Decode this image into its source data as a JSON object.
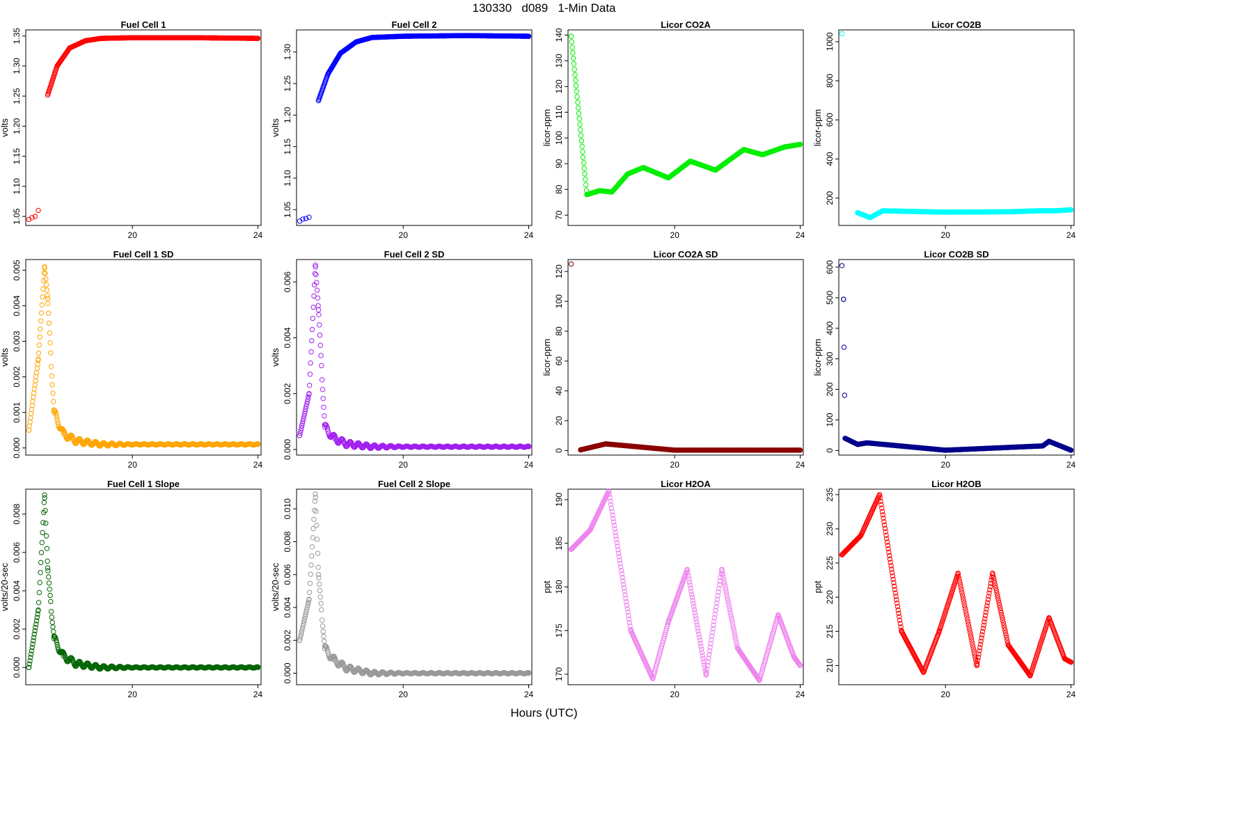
{
  "page": {
    "title": "130330   d089   1-Min Data",
    "xlabel": "Hours (UTC)"
  },
  "chart_data": [
    {
      "type": "scatter",
      "title": "Fuel Cell 1",
      "ylabel": "volts",
      "color": "#ff0000",
      "xlim": [
        16.6,
        24.1
      ],
      "ylim": [
        1.035,
        1.36
      ],
      "xticks": [
        20,
        24
      ],
      "yticks": [
        1.05,
        1.1,
        1.15,
        1.2,
        1.25,
        1.3,
        1.35
      ],
      "series": [
        {
          "pattern": "rise",
          "x": [
            16.7,
            16.8,
            16.9,
            17.0,
            17.3,
            17.6,
            18.0,
            18.5,
            19.0,
            20.0,
            22.0,
            24.0
          ],
          "y": [
            1.045,
            1.048,
            1.05,
            1.06,
            1.252,
            1.3,
            1.33,
            1.342,
            1.346,
            1.347,
            1.347,
            1.346
          ]
        }
      ]
    },
    {
      "type": "scatter",
      "title": "Fuel Cell 2",
      "ylabel": "volts",
      "color": "#0000ff",
      "xlim": [
        16.6,
        24.1
      ],
      "ylim": [
        1.025,
        1.335
      ],
      "xticks": [
        20,
        24
      ],
      "yticks": [
        1.05,
        1.1,
        1.15,
        1.2,
        1.25,
        1.3
      ],
      "series": [
        {
          "pattern": "rise",
          "x": [
            16.7,
            16.8,
            16.9,
            17.0,
            17.3,
            17.6,
            18.0,
            18.5,
            19.0,
            20.0,
            22.0,
            24.0
          ],
          "y": [
            1.032,
            1.035,
            1.036,
            1.038,
            1.223,
            1.265,
            1.298,
            1.316,
            1.323,
            1.325,
            1.326,
            1.325
          ]
        }
      ]
    },
    {
      "type": "scatter",
      "title": "Licor CO2A",
      "ylabel": "licor-ppm",
      "color": "#00ee00",
      "xlim": [
        16.6,
        24.1
      ],
      "ylim": [
        66,
        142
      ],
      "xticks": [
        20,
        24
      ],
      "yticks": [
        70,
        80,
        90,
        100,
        110,
        120,
        130,
        140
      ],
      "series": [
        {
          "pattern": "wave",
          "x": [
            16.7,
            17.2,
            17.6,
            18.0,
            18.5,
            19.0,
            19.8,
            20.5,
            21.3,
            22.2,
            22.8,
            23.5,
            24.0
          ],
          "y": [
            139.5,
            78.0,
            79.5,
            79.0,
            86.0,
            88.5,
            84.5,
            91.0,
            87.5,
            95.5,
            93.5,
            96.5,
            97.5
          ]
        }
      ]
    },
    {
      "type": "scatter",
      "title": "Licor CO2B",
      "ylabel": "licor-ppm",
      "color": "#00ffff",
      "xlim": [
        16.6,
        24.1
      ],
      "ylim": [
        60,
        1060
      ],
      "xticks": [
        20,
        24
      ],
      "yticks": [
        200,
        400,
        600,
        800,
        1000
      ],
      "series": [
        {
          "pattern": "flat",
          "x": [
            16.7,
            17.2,
            17.6,
            18.0,
            20.0,
            22.0,
            23.0,
            23.5,
            24.0
          ],
          "y": [
            1040.0,
            125.0,
            100.0,
            135.0,
            128.0,
            130.0,
            135.0,
            135.0,
            140.0
          ]
        }
      ]
    },
    {
      "type": "scatter",
      "title": "Fuel Cell 1 SD",
      "ylabel": "volts",
      "color": "#ffa500",
      "xlim": [
        16.6,
        24.1
      ],
      "ylim": [
        -0.0002,
        0.0053
      ],
      "xticks": [
        20,
        24
      ],
      "yticks": [
        0.0,
        0.001,
        0.002,
        0.003,
        0.004,
        0.005
      ],
      "series": [
        {
          "pattern": "decay",
          "x": [
            16.7,
            17.0,
            17.2,
            17.3,
            17.5,
            17.8,
            18.2,
            19.0,
            22.0,
            24.0
          ],
          "y": [
            0.0005,
            0.0025,
            0.0051,
            0.0042,
            0.001,
            0.0004,
            0.0002,
            0.0001,
            0.0001,
            0.0001
          ]
        }
      ]
    },
    {
      "type": "scatter",
      "title": "Fuel Cell 2 SD",
      "ylabel": "volts",
      "color": "#a020f0",
      "xlim": [
        16.6,
        24.1
      ],
      "ylim": [
        -0.0002,
        0.0068
      ],
      "xticks": [
        20,
        24
      ],
      "yticks": [
        0.0,
        0.002,
        0.004,
        0.006
      ],
      "series": [
        {
          "pattern": "decay",
          "x": [
            16.7,
            17.0,
            17.2,
            17.3,
            17.5,
            17.8,
            18.2,
            19.0,
            22.0,
            24.0
          ],
          "y": [
            0.0005,
            0.002,
            0.0066,
            0.005,
            0.0008,
            0.0004,
            0.0002,
            0.0001,
            0.0001,
            0.0001
          ]
        }
      ]
    },
    {
      "type": "scatter",
      "title": "Licor CO2A SD",
      "ylabel": "licor-ppm",
      "color": "#8b0000",
      "xlim": [
        16.6,
        24.1
      ],
      "ylim": [
        -3,
        128
      ],
      "xticks": [
        20,
        24
      ],
      "yticks": [
        0,
        20,
        40,
        60,
        80,
        100,
        120
      ],
      "series": [
        {
          "pattern": "flat",
          "x": [
            16.7,
            17.0,
            17.8,
            20.0,
            24.0
          ],
          "y": [
            125.0,
            0.5,
            4.5,
            0.3,
            0.3
          ]
        }
      ]
    },
    {
      "type": "scatter",
      "title": "Licor CO2B SD",
      "ylabel": "licor-ppm",
      "color": "#00008b",
      "xlim": [
        16.6,
        24.1
      ],
      "ylim": [
        -15,
        625
      ],
      "xticks": [
        20,
        24
      ],
      "yticks": [
        0,
        100,
        200,
        300,
        400,
        500,
        600
      ],
      "series": [
        {
          "pattern": "flat",
          "x": [
            16.7,
            16.75,
            16.8,
            17.2,
            17.5,
            20.0,
            23.1,
            23.3,
            24.0
          ],
          "y": [
            605.0,
            495.0,
            40.0,
            20.0,
            25.0,
            1.0,
            15.0,
            30.0,
            1.0
          ]
        }
      ]
    },
    {
      "type": "scatter",
      "title": "Fuel Cell 1 Slope",
      "ylabel": "volts/20-sec",
      "color": "#006400",
      "xlim": [
        16.6,
        24.1
      ],
      "ylim": [
        -0.0009,
        0.0093
      ],
      "xticks": [
        20,
        24
      ],
      "yticks": [
        0.0,
        0.002,
        0.004,
        0.006,
        0.008
      ],
      "series": [
        {
          "pattern": "decay",
          "x": [
            16.7,
            17.0,
            17.2,
            17.3,
            17.5,
            17.8,
            18.2,
            19.0,
            22.0,
            24.0
          ],
          "y": [
            0.0,
            0.003,
            0.009,
            0.0052,
            0.0015,
            0.0006,
            0.0002,
            0.0,
            0.0,
            0.0
          ]
        }
      ]
    },
    {
      "type": "scatter",
      "title": "Fuel Cell 2 Slope",
      "ylabel": "volts/20-sec",
      "color": "#999999",
      "xlim": [
        16.6,
        24.1
      ],
      "ylim": [
        -0.0007,
        0.0112
      ],
      "xticks": [
        20,
        24
      ],
      "yticks": [
        0.0,
        0.002,
        0.004,
        0.006,
        0.008,
        0.01
      ],
      "series": [
        {
          "pattern": "decay",
          "x": [
            16.7,
            17.0,
            17.2,
            17.3,
            17.5,
            17.8,
            18.2,
            19.0,
            22.0,
            24.0
          ],
          "y": [
            0.002,
            0.0045,
            0.0109,
            0.006,
            0.0015,
            0.0008,
            0.0003,
            0.0,
            0.0,
            0.0
          ]
        }
      ]
    },
    {
      "type": "scatter",
      "title": "Licor H2OA",
      "ylabel": "ppt",
      "color": "#ee82ee",
      "xlim": [
        16.6,
        24.1
      ],
      "ylim": [
        168.8,
        191.2
      ],
      "xticks": [
        20,
        24
      ],
      "yticks": [
        170,
        175,
        180,
        185,
        190
      ],
      "series": [
        {
          "pattern": "wave",
          "x": [
            16.7,
            17.3,
            17.9,
            18.6,
            19.3,
            19.8,
            20.4,
            21.0,
            21.5,
            22.0,
            22.7,
            23.3,
            23.8,
            24.0
          ],
          "y": [
            184.3,
            186.5,
            191.0,
            175.0,
            169.5,
            176.0,
            182.0,
            169.9,
            182.0,
            173.0,
            169.3,
            176.8,
            172.0,
            171.0
          ]
        }
      ]
    },
    {
      "type": "scatter",
      "title": "Licor H2OB",
      "ylabel": "ppt",
      "color": "#ff0000",
      "xlim": [
        16.6,
        24.1
      ],
      "ylim": [
        207.2,
        235.8
      ],
      "xticks": [
        20,
        24
      ],
      "yticks": [
        210,
        215,
        220,
        225,
        230,
        235
      ],
      "series": [
        {
          "pattern": "wave",
          "x": [
            16.7,
            17.3,
            17.9,
            18.6,
            19.3,
            19.8,
            20.4,
            21.0,
            21.5,
            22.0,
            22.7,
            23.3,
            23.8,
            24.0
          ],
          "y": [
            226.2,
            229.0,
            235.0,
            215.0,
            209.0,
            215.0,
            223.5,
            210.0,
            223.5,
            213.0,
            208.5,
            217.0,
            211.0,
            210.5
          ]
        }
      ]
    }
  ]
}
